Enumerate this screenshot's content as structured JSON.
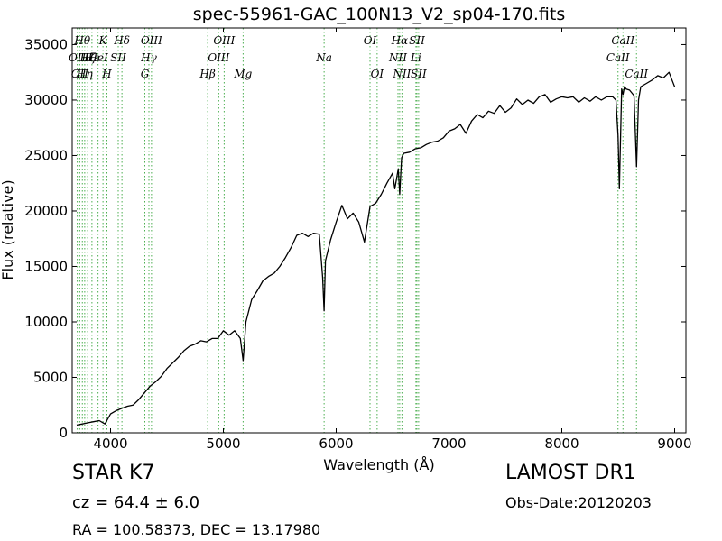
{
  "chart_data": {
    "type": "line",
    "title": "spec-55961-GAC_100N13_V2_sp04-170.fits",
    "xlabel": "Wavelength (Å)",
    "ylabel": "Flux (relative)",
    "xlim": [
      3660,
      9100
    ],
    "ylim": [
      0,
      36500
    ],
    "x_ticks": [
      4000,
      5000,
      6000,
      7000,
      8000,
      9000
    ],
    "y_ticks": [
      0,
      5000,
      10000,
      15000,
      20000,
      25000,
      30000,
      35000
    ],
    "grid": false,
    "series": [
      {
        "color": "#000000",
        "x": [
          3700,
          3750,
          3800,
          3850,
          3900,
          3950,
          4000,
          4050,
          4100,
          4150,
          4200,
          4250,
          4300,
          4350,
          4400,
          4450,
          4500,
          4550,
          4600,
          4650,
          4700,
          4750,
          4800,
          4850,
          4900,
          4950,
          5000,
          5050,
          5100,
          5150,
          5175,
          5200,
          5250,
          5300,
          5350,
          5400,
          5450,
          5500,
          5550,
          5600,
          5650,
          5700,
          5750,
          5800,
          5850,
          5880,
          5893,
          5905,
          5950,
          6000,
          6050,
          6100,
          6150,
          6200,
          6250,
          6300,
          6350,
          6400,
          6450,
          6500,
          6520,
          6550,
          6563,
          6580,
          6600,
          6650,
          6700,
          6750,
          6800,
          6850,
          6900,
          6950,
          7000,
          7050,
          7100,
          7150,
          7200,
          7250,
          7300,
          7350,
          7400,
          7450,
          7500,
          7550,
          7600,
          7650,
          7700,
          7750,
          7800,
          7850,
          7900,
          7950,
          8000,
          8050,
          8100,
          8150,
          8200,
          8250,
          8300,
          8350,
          8400,
          8450,
          8480,
          8498,
          8510,
          8530,
          8542,
          8555,
          8570,
          8600,
          8640,
          8662,
          8680,
          8700,
          8750,
          8800,
          8850,
          8900,
          8950,
          9000
        ],
        "y": [
          700,
          800,
          900,
          1000,
          1100,
          800,
          1700,
          2000,
          2200,
          2400,
          2500,
          3000,
          3600,
          4200,
          4600,
          5100,
          5800,
          6300,
          6800,
          7400,
          7800,
          8000,
          8300,
          8200,
          8500,
          8500,
          9200,
          8800,
          9200,
          8500,
          6500,
          10000,
          12000,
          12800,
          13700,
          14100,
          14400,
          15000,
          15800,
          16700,
          17800,
          18000,
          17700,
          18000,
          17900,
          14000,
          11000,
          15500,
          17400,
          19000,
          20500,
          19300,
          19800,
          19000,
          17200,
          20400,
          20700,
          21500,
          22500,
          23400,
          22000,
          23800,
          21500,
          24800,
          25200,
          25300,
          25600,
          25700,
          26000,
          26200,
          26300,
          26600,
          27200,
          27400,
          27800,
          27000,
          28100,
          28700,
          28400,
          29000,
          28800,
          29500,
          28900,
          29300,
          30100,
          29600,
          30000,
          29700,
          30300,
          30500,
          29800,
          30100,
          30300,
          30200,
          30300,
          29800,
          30200,
          29900,
          30300,
          30000,
          30300,
          30300,
          30000,
          26800,
          22000,
          31000,
          30500,
          31200,
          31000,
          30900,
          30400,
          24000,
          30000,
          31200,
          31500,
          31800,
          32200,
          32000,
          32500,
          31200
        ]
      }
    ],
    "line_markers": [
      {
        "x": 3705,
        "label": "OII",
        "row": 1
      },
      {
        "x": 3727,
        "label": "OII",
        "row": 2
      },
      {
        "x": 3750,
        "label": "Hθ",
        "row": 0
      },
      {
        "x": 3771,
        "label": "Hη",
        "row": 2
      },
      {
        "x": 3797,
        "label": "Hζ",
        "row": 1
      },
      {
        "x": 3835,
        "label": "Hε",
        "row": 1
      },
      {
        "x": 3889,
        "label": "HeI",
        "row": 1
      },
      {
        "x": 3933,
        "label": "K",
        "row": 0
      },
      {
        "x": 3968,
        "label": "H",
        "row": 2
      },
      {
        "x": 4068,
        "label": "SII",
        "row": 1
      },
      {
        "x": 4101,
        "label": "Hδ",
        "row": 0
      },
      {
        "x": 4304,
        "label": "G",
        "row": 2
      },
      {
        "x": 4340,
        "label": "Hγ",
        "row": 1
      },
      {
        "x": 4363,
        "label": "OIII",
        "row": 0
      },
      {
        "x": 4861,
        "label": "Hβ",
        "row": 2
      },
      {
        "x": 4959,
        "label": "OIII",
        "row": 1
      },
      {
        "x": 5007,
        "label": "OIII",
        "row": 0
      },
      {
        "x": 5175,
        "label": "Mg",
        "row": 2
      },
      {
        "x": 5893,
        "label": "Na",
        "row": 1
      },
      {
        "x": 6300,
        "label": "OI",
        "row": 0
      },
      {
        "x": 6363,
        "label": "OI",
        "row": 2
      },
      {
        "x": 6548,
        "label": "NII",
        "row": 1
      },
      {
        "x": 6563,
        "label": "Hα",
        "row": 0
      },
      {
        "x": 6583,
        "label": "NII",
        "row": 2
      },
      {
        "x": 6707,
        "label": "Li",
        "row": 1
      },
      {
        "x": 6716,
        "label": "SII",
        "row": 0
      },
      {
        "x": 6731,
        "label": "SII",
        "row": 2
      },
      {
        "x": 8498,
        "label": "CaII",
        "row": 1
      },
      {
        "x": 8542,
        "label": "CaII",
        "row": 0
      },
      {
        "x": 8662,
        "label": "CaII",
        "row": 2
      }
    ]
  },
  "footer": {
    "object_class": "STAR   K7",
    "redshift": "cz = 64.4  ± 6.0",
    "coordinates": "RA = 100.58373, DEC = 13.17980",
    "survey": "LAMOST DR1",
    "obs_date": "Obs-Date:20120203"
  }
}
